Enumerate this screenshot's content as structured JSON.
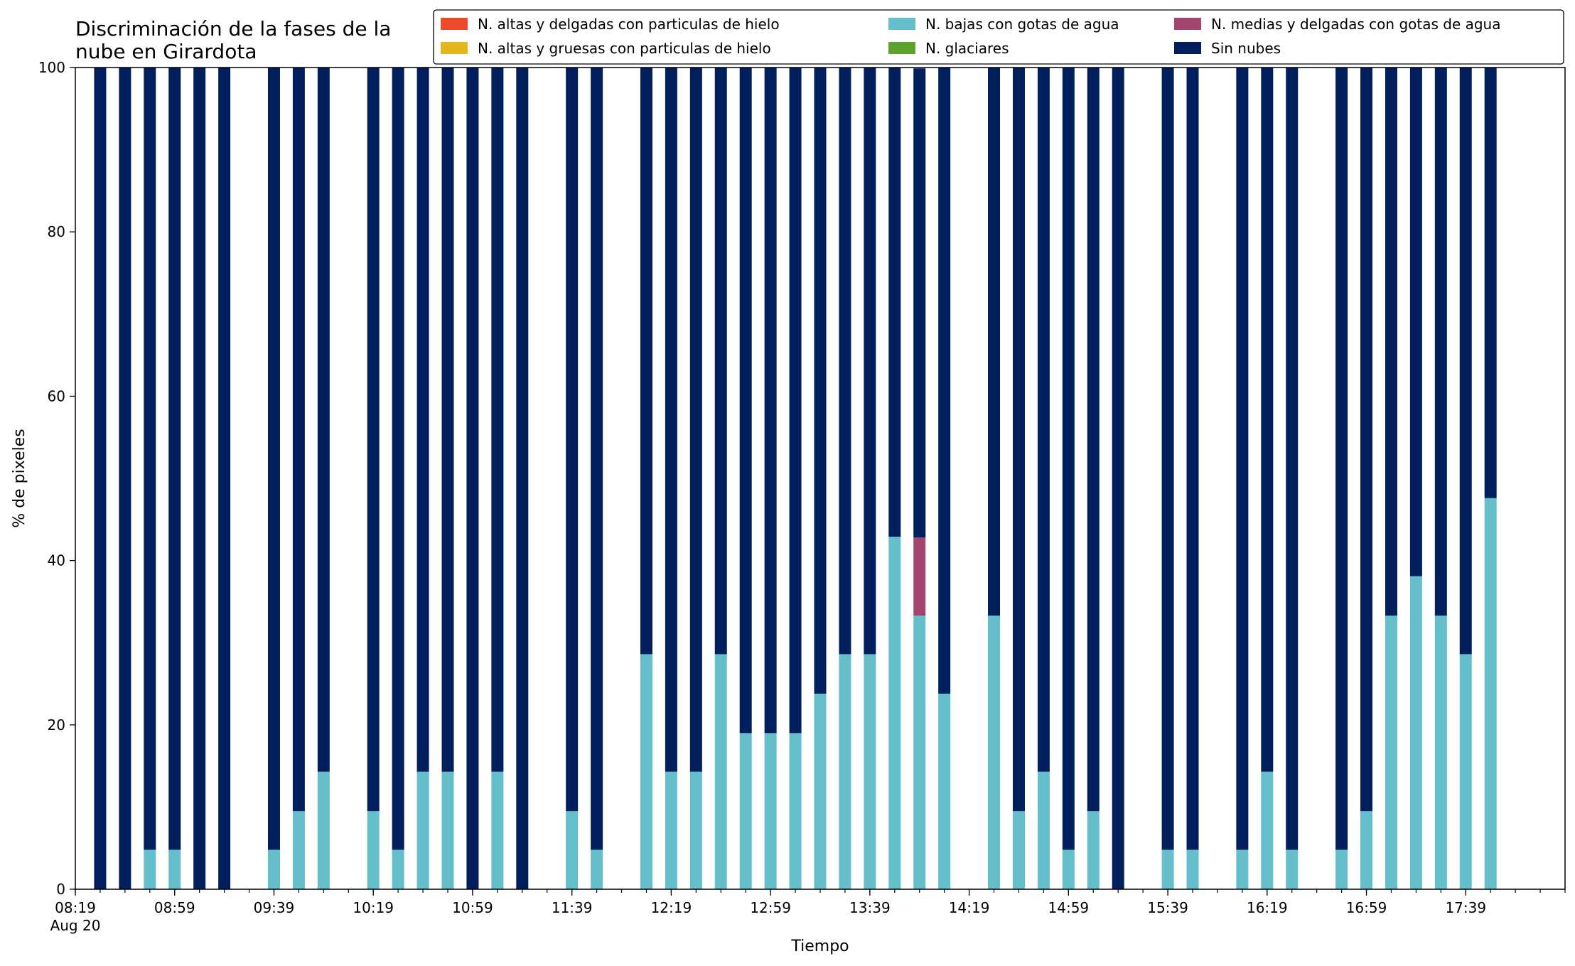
{
  "chart_data": {
    "type": "bar",
    "stacked": true,
    "title": "Discriminación de la fases de la nube en Girardota",
    "title_lines": [
      "Discriminación de la fases de la",
      "nube en Girardota"
    ],
    "xlabel": "Tiempo",
    "ylabel": "% de pixeles",
    "ylim": [
      0,
      100
    ],
    "yticks": [
      0,
      20,
      40,
      60,
      80,
      100
    ],
    "grid": false,
    "legend_placement": "top-right",
    "x_start": "08:19",
    "x_end": "18:19",
    "x_step_minutes": 10,
    "x_tick_labels": [
      "08:19",
      "08:59",
      "09:39",
      "10:19",
      "10:59",
      "11:39",
      "12:19",
      "12:59",
      "13:39",
      "14:19",
      "14:59",
      "15:39",
      "16:19",
      "16:59",
      "17:39"
    ],
    "x_date_label": "Aug 20",
    "x": [
      "08:29",
      "08:39",
      "08:49",
      "08:59",
      "09:09",
      "09:19",
      "09:39",
      "09:49",
      "09:59",
      "10:19",
      "10:29",
      "10:39",
      "10:49",
      "10:59",
      "11:09",
      "11:19",
      "11:39",
      "11:49",
      "12:09",
      "12:19",
      "12:29",
      "12:39",
      "12:49",
      "12:59",
      "13:09",
      "13:19",
      "13:29",
      "13:39",
      "13:49",
      "13:59",
      "14:09",
      "14:29",
      "14:39",
      "14:49",
      "14:59",
      "15:09",
      "15:19",
      "15:39",
      "15:49",
      "16:09",
      "16:19",
      "16:29",
      "16:49",
      "16:59",
      "17:09",
      "17:19",
      "17:29",
      "17:39",
      "17:49"
    ],
    "series": [
      {
        "name": "N. altas y delgadas con particulas de hielo",
        "color": "#ee4a2b",
        "values": [
          0,
          0,
          0,
          0,
          0,
          0,
          0,
          0,
          0,
          0,
          0,
          0,
          0,
          0,
          0,
          0,
          0,
          0,
          0,
          0,
          0,
          0,
          0,
          0,
          0,
          0,
          0,
          0,
          0,
          0,
          0,
          0,
          0,
          0,
          0,
          0,
          0,
          0,
          0,
          0,
          0,
          0,
          0,
          0,
          0,
          0,
          0,
          0,
          0
        ]
      },
      {
        "name": "N. altas y gruesas con particulas de hielo",
        "color": "#e6b71d",
        "values": [
          0,
          0,
          0,
          0,
          0,
          0,
          0,
          0,
          0,
          0,
          0,
          0,
          0,
          0,
          0,
          0,
          0,
          0,
          0,
          0,
          0,
          0,
          0,
          0,
          0,
          0,
          0,
          0,
          0,
          0,
          0,
          0,
          0,
          0,
          0,
          0,
          0,
          0,
          0,
          0,
          0,
          0,
          0,
          0,
          0,
          0,
          0,
          0,
          0
        ]
      },
      {
        "name": "N. bajas con gotas de agua",
        "color": "#64bfcb",
        "values": [
          0,
          0,
          4.8,
          4.8,
          0,
          0,
          4.8,
          9.5,
          14.3,
          9.5,
          4.8,
          14.3,
          14.3,
          0,
          14.3,
          0,
          9.5,
          4.8,
          28.6,
          14.3,
          14.3,
          28.6,
          19.0,
          19.0,
          19.0,
          23.8,
          28.6,
          28.6,
          42.9,
          33.3,
          23.8,
          33.3,
          9.5,
          14.3,
          4.8,
          9.5,
          0,
          4.8,
          4.8,
          4.8,
          14.3,
          4.8,
          4.8,
          9.5,
          33.3,
          38.1,
          33.3,
          28.6,
          47.6
        ]
      },
      {
        "name": "N. glaciares",
        "color": "#5ea22e",
        "values": [
          0,
          0,
          0,
          0,
          0,
          0,
          0,
          0,
          0,
          0,
          0,
          0,
          0,
          0,
          0,
          0,
          0,
          0,
          0,
          0,
          0,
          0,
          0,
          0,
          0,
          0,
          0,
          0,
          0,
          0,
          0,
          0,
          0,
          0,
          0,
          0,
          0,
          0,
          0,
          0,
          0,
          0,
          0,
          0,
          0,
          0,
          0,
          0,
          0
        ]
      },
      {
        "name": "N. medias y delgadas con gotas de agua",
        "color": "#a3466f",
        "values": [
          0,
          0,
          0,
          0,
          0,
          0,
          0,
          0,
          0,
          0,
          0,
          0,
          0,
          0,
          0,
          0,
          0,
          0,
          0,
          0,
          0,
          0,
          0,
          0,
          0,
          0,
          0,
          0,
          0,
          9.5,
          0,
          0,
          0,
          0,
          0,
          0,
          0,
          0,
          0,
          0,
          0,
          0,
          0,
          0,
          0,
          0,
          0,
          0,
          0
        ]
      },
      {
        "name": "Sin nubes",
        "color": "#011e5d",
        "values": [
          100,
          100,
          95.2,
          95.2,
          100,
          100,
          95.2,
          90.5,
          85.7,
          90.5,
          95.2,
          85.7,
          85.7,
          100,
          85.7,
          100,
          90.5,
          95.2,
          71.4,
          85.7,
          85.7,
          71.4,
          81.0,
          81.0,
          81.0,
          76.2,
          71.4,
          71.4,
          57.1,
          57.1,
          76.2,
          66.7,
          90.5,
          85.7,
          95.2,
          90.5,
          100,
          95.2,
          95.2,
          95.2,
          85.7,
          95.2,
          95.2,
          90.5,
          66.7,
          61.9,
          66.7,
          71.4,
          52.4
        ]
      }
    ]
  }
}
